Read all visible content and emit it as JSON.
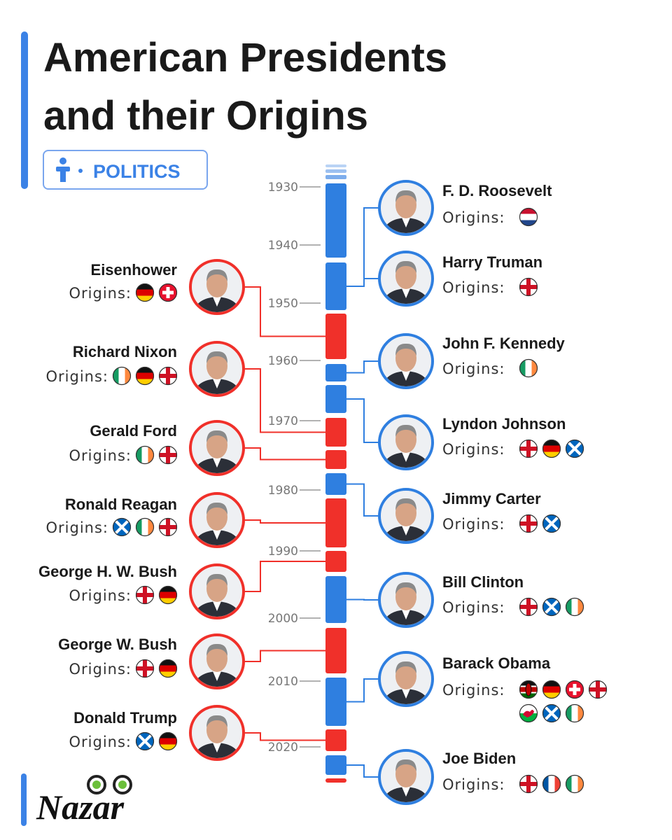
{
  "header": {
    "title_lines": [
      "American Presidents",
      "and their Origins"
    ],
    "tag": "POLITICS"
  },
  "timeline": {
    "years": [
      1930,
      1940,
      1950,
      1960,
      1970,
      1980,
      1990,
      2000,
      2010,
      2020
    ]
  },
  "origins_label": "Origins:",
  "right": [
    {
      "name": "F. D. Roosevelt"
    },
    {
      "name": "Harry Truman"
    },
    {
      "name": "John F. Kennedy"
    },
    {
      "name": "Lyndon Johnson"
    },
    {
      "name": "Jimmy Carter"
    },
    {
      "name": "Bill Clinton"
    },
    {
      "name": "Barack Obama"
    },
    {
      "name": "Joe Biden"
    }
  ],
  "left": [
    {
      "name": "Eisenhower"
    },
    {
      "name": "Richard Nixon"
    },
    {
      "name": "Gerald Ford"
    },
    {
      "name": "Ronald Reagan"
    },
    {
      "name": "George H. W. Bush"
    },
    {
      "name": "George W. Bush"
    },
    {
      "name": "Donald Trump"
    }
  ],
  "logo": "Nazar"
}
